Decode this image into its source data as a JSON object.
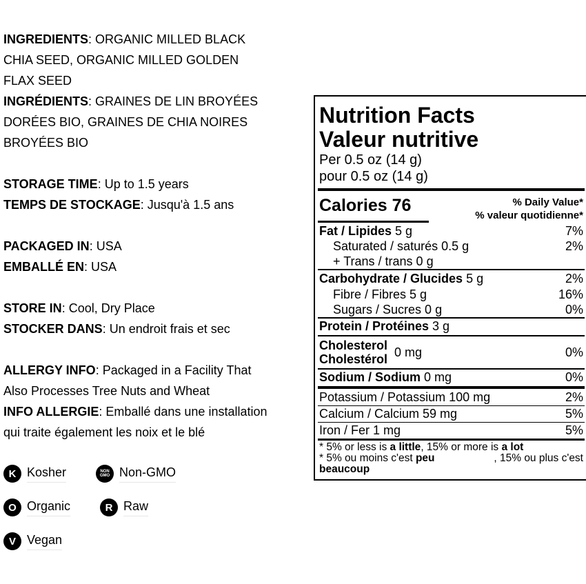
{
  "left": {
    "ingredients_en": {
      "label": "INGREDIENTS",
      "text": ": ORGANIC MILLED BLACK",
      "l2": "CHIA SEED, ORGANIC MILLED GOLDEN",
      "l3": "FLAX SEED"
    },
    "ingredients_fr": {
      "label": "INGRÉDIENTS",
      "text": ": GRAINES DE LIN BROYÉES",
      "l2": "DORÉES BIO, GRAINES DE CHIA NOIRES",
      "l3": "BROYÉES BIO"
    },
    "storage_en": {
      "label": "STORAGE TIME",
      "text": ": Up to 1.5 years"
    },
    "storage_fr": {
      "label": "TEMPS DE STOCKAGE",
      "text": ": Jusqu'à 1.5 ans"
    },
    "packaged_en": {
      "label": "PACKAGED IN",
      "text": ": USA"
    },
    "packaged_fr": {
      "label": "EMBALLÉ EN",
      "text": ": USA"
    },
    "store_en": {
      "label": "STORE IN",
      "text": ": Cool, Dry Place"
    },
    "store_fr": {
      "label": "STOCKER DANS",
      "text": ": Un endroit frais et sec"
    },
    "allergy_en": {
      "label": "ALLERGY INFO",
      "text": ": Packaged in a Facility That",
      "l2": "Also Processes Tree Nuts and Wheat"
    },
    "allergy_fr": {
      "label": "INFO ALLERGIE",
      "text": ": Emballé dans une installation",
      "l2": "qui traite également les noix et le blé"
    }
  },
  "badges": [
    {
      "icon": "K",
      "label": "Kosher"
    },
    {
      "icon": "NON GMO",
      "label": "Non-GMO"
    },
    {
      "icon": "O",
      "label": "Organic"
    },
    {
      "icon": "R",
      "label": "Raw"
    },
    {
      "icon": "V",
      "label": "Vegan"
    }
  ],
  "nutrition": {
    "title_en": "Nutrition Facts",
    "title_fr": "Valeur nutritive",
    "serving_en": "Per 0.5 oz (14 g)",
    "serving_fr": "pour 0.5 oz (14 g)",
    "calories_label": "Calories",
    "calories": "76",
    "dv_en": "% Daily Value*",
    "dv_fr": "% valeur quotidienne*",
    "rows": [
      {
        "bold": "Fat / Lipides",
        "text": " 5 g",
        "dv": "7%"
      },
      {
        "text": "Saturated / saturés 0.5 g",
        "dv": "2%"
      },
      {
        "text": "+ Trans / trans 0 g",
        "dv": ""
      },
      {
        "bold": "Carbohydrate / Glucides",
        "text": " 5 g",
        "dv": "2%"
      },
      {
        "text": "Fibre / Fibres 5 g",
        "dv": "16%"
      },
      {
        "text": "Sugars / Sucres 0 g",
        "dv": "0%"
      },
      {
        "bold": "Protein / Protéines",
        "text": " 3 g",
        "dv": ""
      }
    ],
    "cholesterol": {
      "en": "Cholesterol",
      "fr": "Cholestérol",
      "amount": "0 mg",
      "dv": "0%"
    },
    "sodium": {
      "bold": "Sodium / Sodium",
      "text": " 0 mg",
      "dv": "0%"
    },
    "minerals": [
      {
        "text": "Potassium / Potassium 100 mg",
        "dv": "2%"
      },
      {
        "text": "Calcium / Calcium 59 mg",
        "dv": "5%"
      },
      {
        "text": "Iron / Fer 1 mg",
        "dv": "5%"
      }
    ],
    "footnote": {
      "a": "* 5% or less is ",
      "b": "a little",
      "c": ", 15% or more is ",
      "d": "a lot",
      "e": "* 5% ou moins c'est ",
      "f": "peu",
      "g": ", 15% ou plus c'est",
      "h": "beaucoup"
    }
  }
}
